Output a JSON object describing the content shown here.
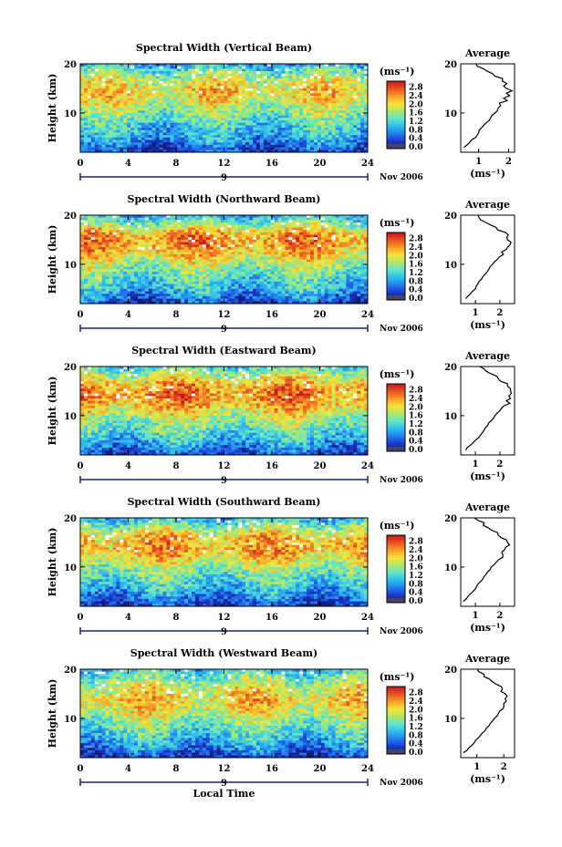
{
  "figure": {
    "xlabel": "Local Time",
    "date_label": "Nov 2006",
    "day_label": "9",
    "colorbar_unit": "(ms⁻¹)",
    "colorbar_ticks": [
      "2.8",
      "2.4",
      "2.0",
      "1.6",
      "1.2",
      "0.8",
      "0.4",
      "0.0"
    ],
    "average_title": "Average",
    "average_xlabel": "(ms⁻¹)",
    "ylabel": "Height (km)"
  },
  "chart_data": [
    {
      "type": "heatmap",
      "title": "Spectral Width (Vertical Beam)",
      "xlabel": "Local Time",
      "ylabel": "Height (km)",
      "x_ticks": [
        0,
        4,
        8,
        12,
        16,
        20,
        24
      ],
      "xlim": [
        0,
        24
      ],
      "y_ticks": [
        10,
        20
      ],
      "ylim": [
        2,
        20
      ],
      "colorbar": {
        "label": "(ms⁻¹)",
        "ticks": [
          0.0,
          0.4,
          0.8,
          1.2,
          1.6,
          2.0,
          2.4,
          2.8
        ],
        "range": [
          0,
          3.0
        ]
      },
      "profile": {
        "title": "Average",
        "xlabel": "(ms⁻¹)",
        "x_ticks": [
          1,
          2
        ],
        "xlim": [
          0.4,
          2.2
        ],
        "heights": [
          3,
          4,
          5,
          6,
          7,
          8,
          9,
          10,
          11,
          12,
          13,
          14,
          15,
          16,
          17,
          18,
          19,
          20
        ],
        "values": [
          0.5,
          0.7,
          0.9,
          1.0,
          1.1,
          1.25,
          1.4,
          1.55,
          1.65,
          1.8,
          1.95,
          2.05,
          2.0,
          1.9,
          1.75,
          1.5,
          1.2,
          0.8
        ]
      }
    },
    {
      "type": "heatmap",
      "title": "Spectral Width (Northward Beam)",
      "xlabel": "Local Time",
      "ylabel": "Height (km)",
      "x_ticks": [
        0,
        4,
        8,
        12,
        16,
        20,
        24
      ],
      "xlim": [
        0,
        24
      ],
      "y_ticks": [
        10,
        20
      ],
      "ylim": [
        2,
        20
      ],
      "colorbar": {
        "label": "(ms⁻¹)",
        "ticks": [
          0.0,
          0.4,
          0.8,
          1.2,
          1.6,
          2.0,
          2.4,
          2.8
        ],
        "range": [
          0,
          3.0
        ]
      },
      "profile": {
        "title": "Average",
        "xlabel": "(ms⁻¹)",
        "x_ticks": [
          1,
          2
        ],
        "xlim": [
          0.4,
          2.6
        ],
        "heights": [
          3,
          4,
          5,
          6,
          7,
          8,
          9,
          10,
          11,
          12,
          13,
          14,
          15,
          16,
          17,
          18,
          19,
          20
        ],
        "values": [
          0.6,
          0.8,
          1.0,
          1.1,
          1.25,
          1.4,
          1.55,
          1.7,
          1.9,
          2.1,
          2.25,
          2.35,
          2.4,
          2.3,
          2.0,
          1.6,
          1.3,
          1.0
        ]
      }
    },
    {
      "type": "heatmap",
      "title": "Spectral Width (Eastward Beam)",
      "xlabel": "Local Time",
      "ylabel": "Height (km)",
      "x_ticks": [
        0,
        4,
        8,
        12,
        16,
        20,
        24
      ],
      "xlim": [
        0,
        24
      ],
      "y_ticks": [
        10,
        20
      ],
      "ylim": [
        2,
        20
      ],
      "colorbar": {
        "label": "(ms⁻¹)",
        "ticks": [
          0.0,
          0.4,
          0.8,
          1.2,
          1.6,
          2.0,
          2.4,
          2.8
        ],
        "range": [
          0,
          3.0
        ]
      },
      "profile": {
        "title": "Average",
        "xlabel": "(ms⁻¹)",
        "x_ticks": [
          1,
          2
        ],
        "xlim": [
          0.4,
          2.6
        ],
        "heights": [
          3,
          4,
          5,
          6,
          7,
          8,
          9,
          10,
          11,
          12,
          13,
          14,
          15,
          16,
          17,
          18,
          19,
          20
        ],
        "values": [
          0.6,
          0.8,
          1.0,
          1.2,
          1.35,
          1.5,
          1.65,
          1.8,
          2.0,
          2.2,
          2.35,
          2.45,
          2.4,
          2.3,
          2.1,
          1.8,
          1.5,
          1.2
        ]
      }
    },
    {
      "type": "heatmap",
      "title": "Spectral Width (Southward Beam)",
      "xlabel": "Local Time",
      "ylabel": "Height (km)",
      "x_ticks": [
        0,
        4,
        8,
        12,
        16,
        20,
        24
      ],
      "xlim": [
        0,
        24
      ],
      "y_ticks": [
        10,
        20
      ],
      "ylim": [
        2,
        20
      ],
      "colorbar": {
        "label": "(ms⁻¹)",
        "ticks": [
          0.0,
          0.4,
          0.8,
          1.2,
          1.6,
          2.0,
          2.4,
          2.8
        ],
        "range": [
          0,
          3.0
        ]
      },
      "profile": {
        "title": "Average",
        "xlabel": "(ms⁻¹)",
        "x_ticks": [
          1,
          2
        ],
        "xlim": [
          0.4,
          2.6
        ],
        "heights": [
          3,
          4,
          5,
          6,
          7,
          8,
          9,
          10,
          11,
          12,
          13,
          14,
          15,
          16,
          17,
          18,
          19,
          20
        ],
        "values": [
          0.5,
          0.7,
          0.9,
          1.05,
          1.2,
          1.35,
          1.5,
          1.65,
          1.85,
          2.05,
          2.2,
          2.3,
          2.25,
          2.15,
          1.9,
          1.6,
          1.3,
          1.0
        ]
      }
    },
    {
      "type": "heatmap",
      "title": "Spectral Width (Westward Beam)",
      "xlabel": "Local Time",
      "ylabel": "Height (km)",
      "x_ticks": [
        0,
        4,
        8,
        12,
        16,
        20,
        24
      ],
      "xlim": [
        0,
        24
      ],
      "y_ticks": [
        10,
        20
      ],
      "ylim": [
        2,
        20
      ],
      "colorbar": {
        "label": "(ms⁻¹)",
        "ticks": [
          0.0,
          0.4,
          0.8,
          1.2,
          1.6,
          2.0,
          2.4,
          2.8
        ],
        "range": [
          0,
          3.0
        ]
      },
      "profile": {
        "title": "Average",
        "xlabel": "(ms⁻¹)",
        "x_ticks": [
          1,
          2
        ],
        "xlim": [
          0.4,
          2.4
        ],
        "heights": [
          3,
          4,
          5,
          6,
          7,
          8,
          9,
          10,
          11,
          12,
          13,
          14,
          15,
          16,
          17,
          18,
          19,
          20
        ],
        "values": [
          0.5,
          0.7,
          0.9,
          1.05,
          1.2,
          1.35,
          1.5,
          1.65,
          1.8,
          1.95,
          2.05,
          2.1,
          2.0,
          1.9,
          1.7,
          1.5,
          1.3,
          1.0
        ]
      }
    }
  ]
}
